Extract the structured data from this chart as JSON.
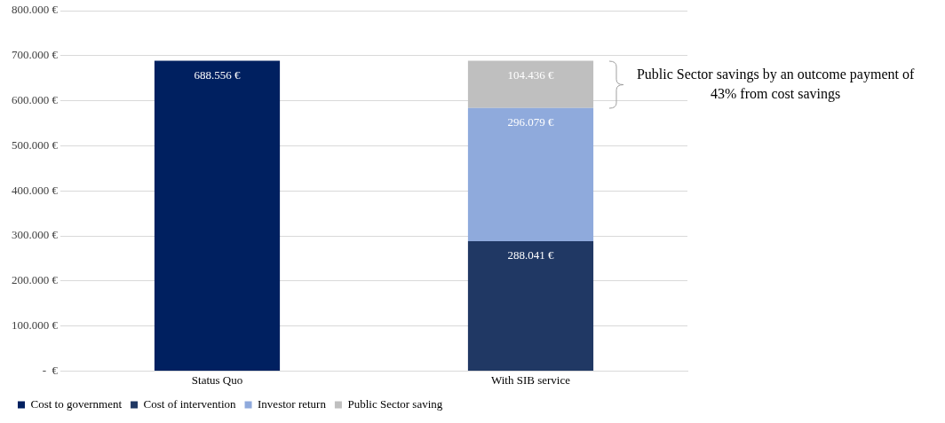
{
  "chart_data": {
    "type": "bar",
    "stacked": true,
    "categories": [
      "Status Quo",
      "With SIB service"
    ],
    "series": [
      {
        "name": "Cost to government",
        "color": "#002060",
        "values": [
          688556,
          null
        ],
        "value_labels": [
          "688.556 €",
          null
        ]
      },
      {
        "name": "Cost of intervention",
        "color": "#203864",
        "values": [
          null,
          288041
        ],
        "value_labels": [
          null,
          "288.041 €"
        ]
      },
      {
        "name": "Investor return",
        "color": "#8faadc",
        "values": [
          null,
          296079
        ],
        "value_labels": [
          null,
          "296.079 €"
        ]
      },
      {
        "name": "Public Sector saving",
        "color": "#bfbfbf",
        "values": [
          null,
          104436
        ],
        "value_labels": [
          null,
          "104.436 €"
        ]
      }
    ],
    "ylim": [
      0,
      800000
    ],
    "yticks": [
      {
        "value": 0,
        "label": "-  €"
      },
      {
        "value": 100000,
        "label": "100.000 €"
      },
      {
        "value": 200000,
        "label": "200.000 €"
      },
      {
        "value": 300000,
        "label": "300.000 €"
      },
      {
        "value": 400000,
        "label": "400.000 €"
      },
      {
        "value": 500000,
        "label": "500.000 €"
      },
      {
        "value": 600000,
        "label": "600.000 €"
      },
      {
        "value": 700000,
        "label": "700.000 €"
      },
      {
        "value": 800000,
        "label": "800.000 €"
      }
    ],
    "grid": "y",
    "legend": "bottom",
    "annotations": [
      "Public Sector savings by an outcome payment of 43% from cost savings"
    ]
  }
}
